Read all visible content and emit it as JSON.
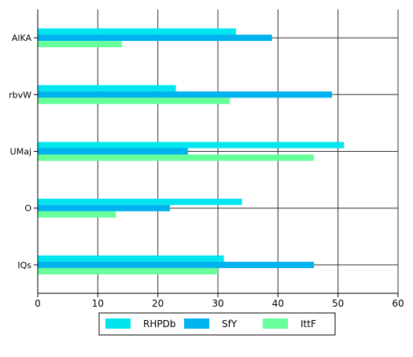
{
  "chart_data": {
    "type": "bar",
    "orientation": "horizontal",
    "categories": [
      "AlKA",
      "rbvW",
      "UMaj",
      "O",
      "IQs"
    ],
    "series": [
      {
        "name": "RHPDb",
        "color": "#00e5ee",
        "values": [
          33,
          23,
          51,
          34,
          31
        ]
      },
      {
        "name": "SfY",
        "color": "#00b2ee",
        "values": [
          39,
          49,
          25,
          22,
          46
        ]
      },
      {
        "name": "IttF",
        "color": "#66ff99",
        "values": [
          14,
          32,
          46,
          13,
          30
        ]
      }
    ],
    "xlim": [
      0,
      60
    ],
    "xticks": [
      0,
      10,
      20,
      30,
      40,
      50,
      60
    ],
    "grid": true,
    "legend_position": "bottom"
  }
}
